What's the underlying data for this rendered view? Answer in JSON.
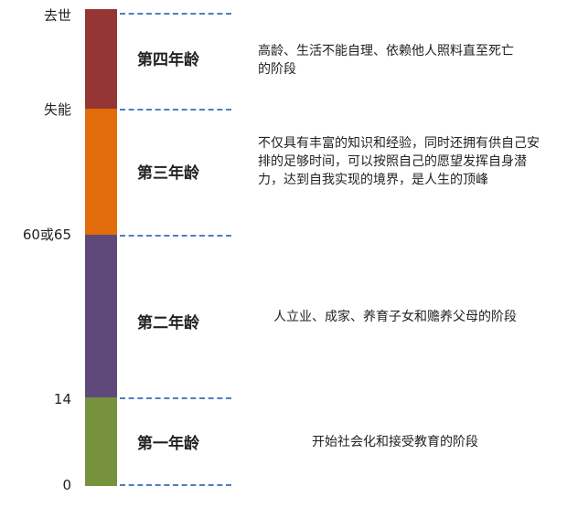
{
  "ticks": {
    "death": "去世",
    "disability": "失能",
    "retire": "60或65",
    "fourteen": "14",
    "zero": "0"
  },
  "colors": {
    "stage4": "#943634",
    "stage3": "#e36c0a",
    "stage2": "#5f497a",
    "stage1": "#76923c",
    "dash": "#4f7fbf"
  },
  "stages": [
    {
      "label": "第四年龄",
      "description": "高龄、生活不能自理、依赖他人照料直至死亡的阶段"
    },
    {
      "label": "第三年龄",
      "description": "不仅具有丰富的知识和经验，同时还拥有供自己安排的足够时间，可以按照自己的愿望发挥自身潜力，达到自我实现的境界，是人生的顶峰"
    },
    {
      "label": "第二年龄",
      "description": "人立业、成家、养育子女和赡养父母的阶段"
    },
    {
      "label": "第一年龄",
      "description": "开始社会化和接受教育的阶段"
    }
  ]
}
